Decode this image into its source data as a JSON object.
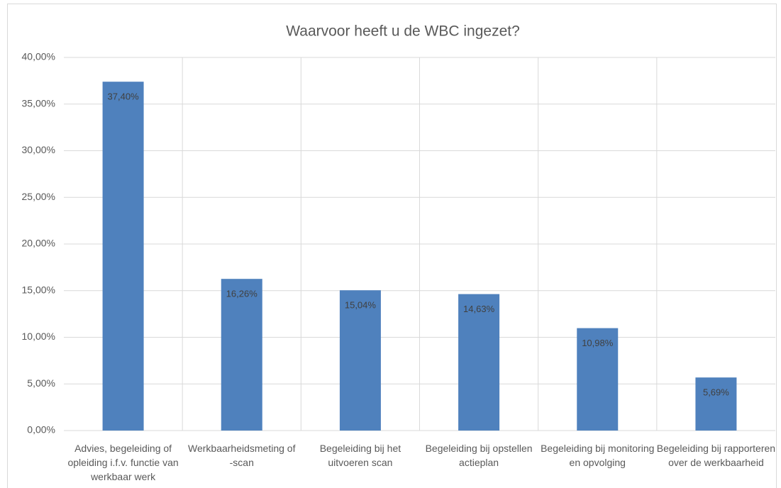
{
  "chart_data": {
    "type": "bar",
    "title": "Waarvoor heeft u de WBC ingezet?",
    "categories": [
      "Advies, begeleiding of opleiding i.f.v. functie van werkbaar werk",
      "Werkbaarheidsmeting of -scan",
      "Begeleiding bij het uitvoeren scan",
      "Begeleiding bij opstellen actieplan",
      "Begeleiding bij monitoring en opvolging",
      "Begeleiding bij rapporteren over de werkbaarheid"
    ],
    "values": [
      37.4,
      16.26,
      15.04,
      14.63,
      10.98,
      5.69
    ],
    "value_labels": [
      "37,40%",
      "16,26%",
      "15,04%",
      "14,63%",
      "10,98%",
      "5,69%"
    ],
    "color": "#4f81bd",
    "ylim": [
      0,
      40
    ],
    "yticks": [
      {
        "value": 0,
        "label": "0,00%"
      },
      {
        "value": 5,
        "label": "5,00%"
      },
      {
        "value": 10,
        "label": "10,00%"
      },
      {
        "value": 15,
        "label": "15,00%"
      },
      {
        "value": 20,
        "label": "20,00%"
      },
      {
        "value": 25,
        "label": "25,00%"
      },
      {
        "value": 30,
        "label": "30,00%"
      },
      {
        "value": 35,
        "label": "35,00%"
      },
      {
        "value": 40,
        "label": "40,00%"
      }
    ],
    "grid": true
  }
}
